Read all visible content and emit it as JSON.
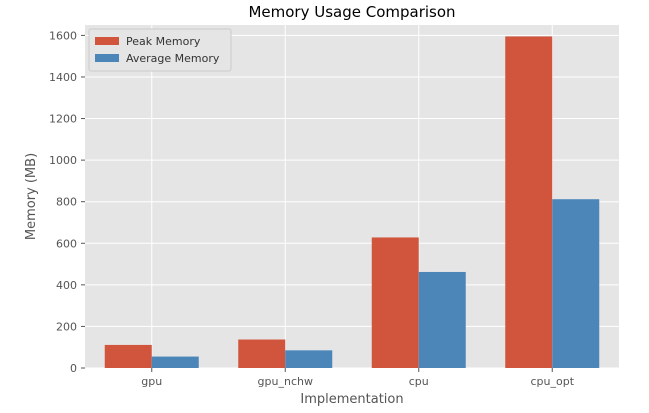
{
  "chart_data": {
    "type": "bar",
    "title": "Memory Usage Comparison",
    "xlabel": "Implementation",
    "ylabel": "Memory (MB)",
    "categories": [
      "gpu",
      "gpu_nchw",
      "cpu",
      "cpu_opt"
    ],
    "series": [
      {
        "name": "Peak Memory",
        "values": [
          111,
          137,
          628,
          1595
        ],
        "color": "#d1543d"
      },
      {
        "name": "Average Memory",
        "values": [
          55,
          85,
          462,
          812
        ],
        "color": "#4c86b9"
      }
    ],
    "ylim": [
      0,
      1650
    ],
    "yticks": [
      0,
      200,
      400,
      600,
      800,
      1000,
      1200,
      1400,
      1600
    ],
    "grid": true,
    "legend_position": "top-left",
    "background_color": "#e5e5e5",
    "grid_color": "#ffffff"
  }
}
